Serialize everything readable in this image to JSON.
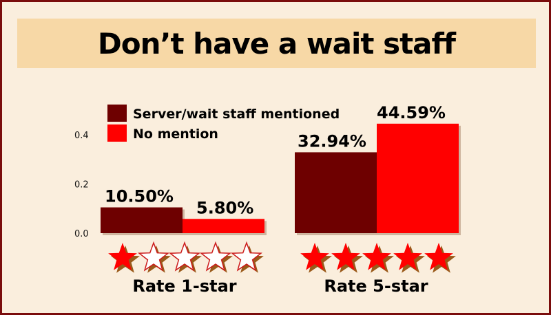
{
  "chart_data": {
    "type": "bar",
    "title": "Don’t have a wait staff",
    "categories": [
      "Rate 1-star",
      "Rate 5-star"
    ],
    "series": [
      {
        "name": "Server/wait staff mentioned",
        "values": [
          0.105,
          0.3294
        ],
        "labels": [
          "10.50%",
          "32.94%"
        ],
        "color": "#6e0000"
      },
      {
        "name": "No mention",
        "values": [
          0.058,
          0.4459
        ],
        "labels": [
          "5.80%",
          "44.59%"
        ],
        "color": "#ff0000"
      }
    ],
    "yticks": [
      "0.0",
      "0.2",
      "0.4"
    ],
    "ylim": [
      0,
      0.45
    ],
    "legend_position": "top-left",
    "grid": false,
    "stars": [
      {
        "category": "Rate 1-star",
        "filled": 1,
        "total": 5
      },
      {
        "category": "Rate 5-star",
        "filled": 5,
        "total": 5
      }
    ],
    "colors": {
      "border": "#7a0c0c",
      "background": "#faeedd",
      "banner": "#f7d8a6",
      "star_fill": "#ff0000",
      "star_empty": "#ffffff",
      "star_shadow": "#9a5a1a"
    }
  }
}
